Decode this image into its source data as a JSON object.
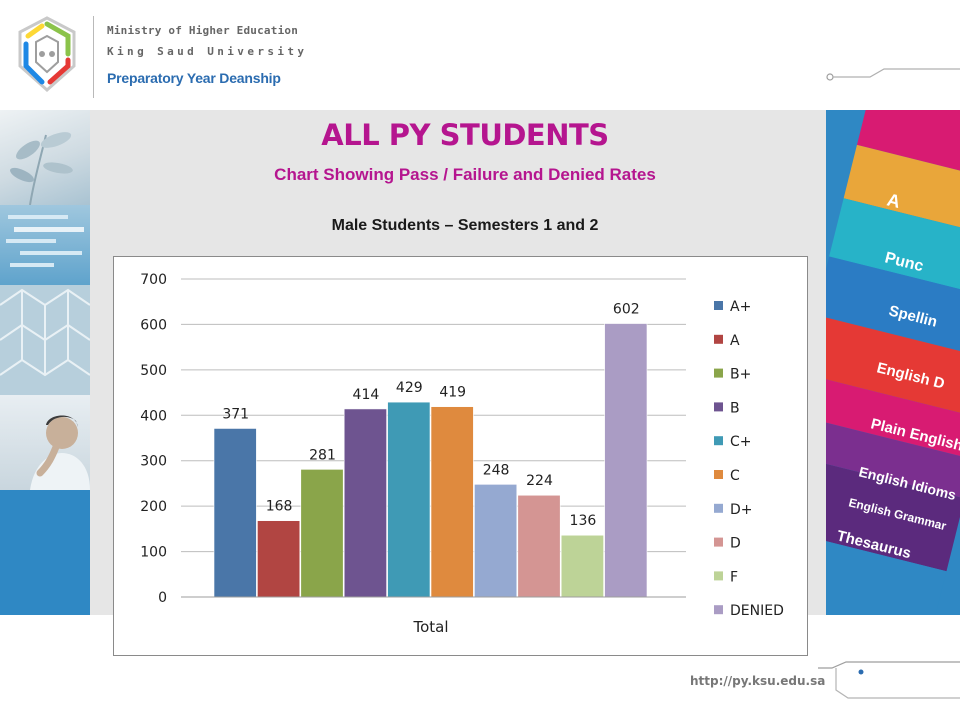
{
  "header": {
    "ministry": "Ministry of Higher Education",
    "university": "King Saud University",
    "deanship": "Preparatory Year Deanship"
  },
  "slide": {
    "title": "ALL PY STUDENTS",
    "subtitle": "Chart Showing Pass / Failure and Denied Rates",
    "heading": "Male Students – Semesters 1 and 2"
  },
  "colors": {
    "title": "#b5158f",
    "deanship": "#2b6cb0"
  },
  "footer": {
    "url": "http://py.ksu.edu.sa"
  },
  "chart_data": {
    "type": "bar",
    "xlabel": "Total",
    "ylabel": "",
    "ylim": [
      0,
      700
    ],
    "yticks": [
      0,
      100,
      200,
      300,
      400,
      500,
      600,
      700
    ],
    "grid": true,
    "legend_position": "right",
    "categories": [
      "Total"
    ],
    "series": [
      {
        "name": "A+",
        "values": [
          371
        ],
        "color": "#4a76a8"
      },
      {
        "name": "A",
        "values": [
          168
        ],
        "color": "#b14542"
      },
      {
        "name": "B+",
        "values": [
          281
        ],
        "color": "#8aa54a"
      },
      {
        "name": "B",
        "values": [
          414
        ],
        "color": "#6e5490"
      },
      {
        "name": "C+",
        "values": [
          429
        ],
        "color": "#3f9ab5"
      },
      {
        "name": "C",
        "values": [
          419
        ],
        "color": "#df8a3e"
      },
      {
        "name": "D+",
        "values": [
          248
        ],
        "color": "#95a9d1"
      },
      {
        "name": "D",
        "values": [
          224
        ],
        "color": "#d49593"
      },
      {
        "name": "F",
        "values": [
          136
        ],
        "color": "#bdd397"
      },
      {
        "name": "DENIED",
        "values": [
          602
        ],
        "color": "#aa9cc4"
      }
    ]
  }
}
